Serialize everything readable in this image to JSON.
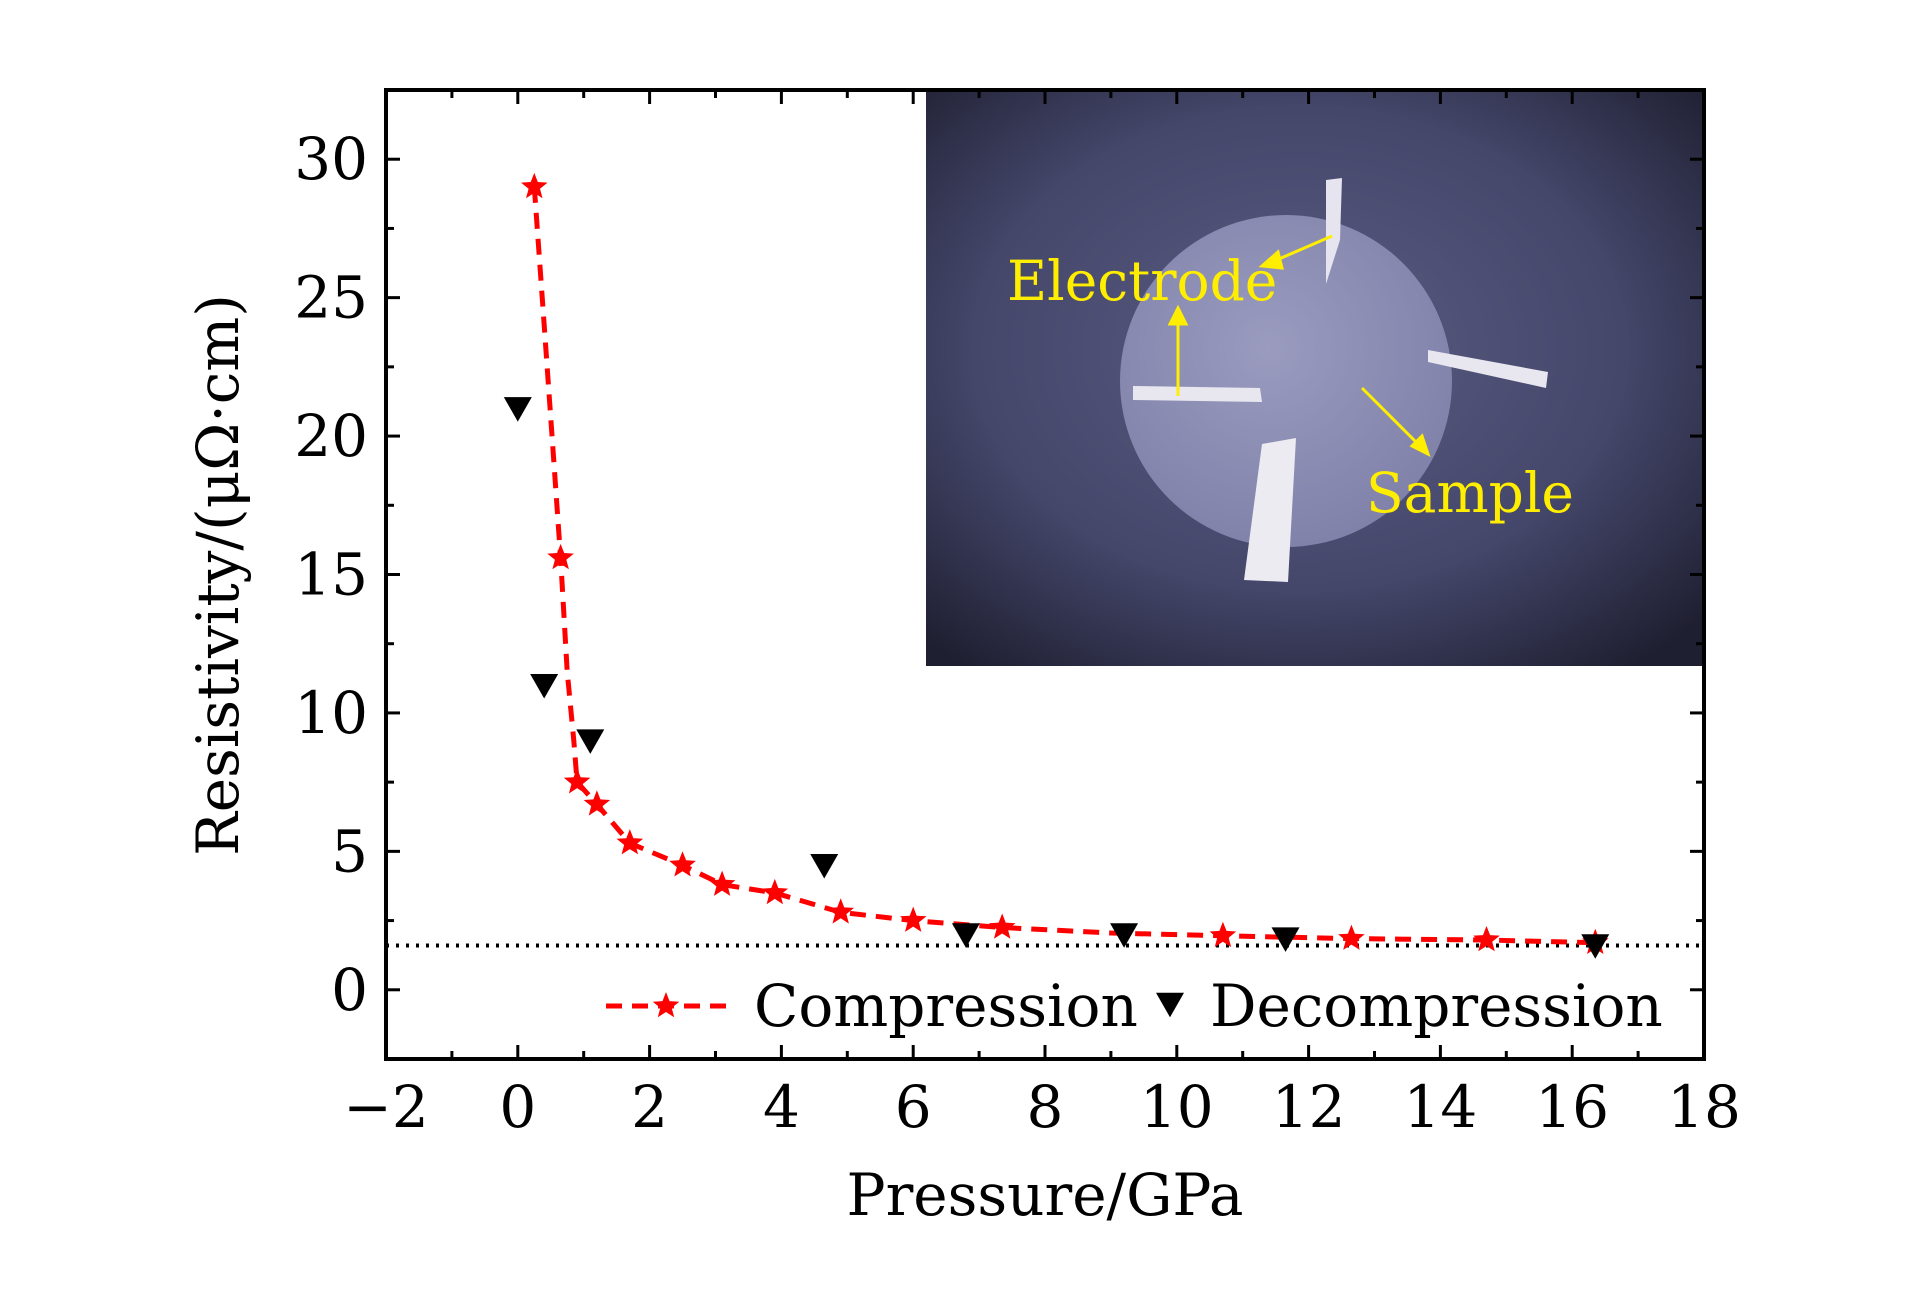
{
  "chart_data": {
    "type": "scatter",
    "title": "",
    "xlabel": "Pressure/GPa",
    "ylabel": "Resistivity/(μΩ·cm)",
    "xlim": [
      -2,
      18
    ],
    "ylim": [
      -2.5,
      32.5
    ],
    "x_ticks": [
      -2,
      0,
      2,
      4,
      6,
      8,
      10,
      12,
      14,
      16,
      18
    ],
    "x_tick_labels": [
      "−2",
      "0",
      "2",
      "4",
      "6",
      "8",
      "10",
      "12",
      "14",
      "16",
      "18"
    ],
    "y_ticks": [
      0,
      5,
      10,
      15,
      20,
      25,
      30
    ],
    "y_tick_labels": [
      "0",
      "5",
      "10",
      "15",
      "20",
      "25",
      "30"
    ],
    "grid": false,
    "legend_position": "bottom",
    "reference_line": {
      "y": 1.6,
      "style": "dotted",
      "color": "#000000"
    },
    "series": [
      {
        "name": "Compression",
        "marker": "star",
        "line": "dashed",
        "color": "#ff0000",
        "points": [
          [
            0.25,
            29.0
          ],
          [
            0.65,
            15.6
          ],
          [
            0.9,
            7.5
          ],
          [
            1.2,
            6.7
          ],
          [
            1.7,
            5.3
          ],
          [
            2.5,
            4.5
          ],
          [
            3.1,
            3.8
          ],
          [
            3.9,
            3.5
          ],
          [
            4.9,
            2.8
          ],
          [
            6.0,
            2.5
          ],
          [
            7.35,
            2.25
          ],
          [
            10.7,
            1.95
          ],
          [
            12.65,
            1.85
          ],
          [
            14.7,
            1.8
          ],
          [
            16.35,
            1.7
          ]
        ],
        "curve": [
          [
            0.25,
            29.0
          ],
          [
            0.4,
            24.0
          ],
          [
            0.55,
            19.0
          ],
          [
            0.65,
            15.6
          ],
          [
            0.75,
            11.5
          ],
          [
            0.85,
            9.0
          ],
          [
            0.9,
            7.5
          ],
          [
            1.2,
            6.7
          ],
          [
            1.7,
            5.3
          ],
          [
            2.5,
            4.5
          ],
          [
            3.1,
            3.8
          ],
          [
            3.9,
            3.5
          ],
          [
            4.9,
            2.8
          ],
          [
            6.0,
            2.5
          ],
          [
            7.35,
            2.25
          ],
          [
            9.0,
            2.05
          ],
          [
            10.7,
            1.95
          ],
          [
            12.65,
            1.85
          ],
          [
            14.7,
            1.8
          ],
          [
            16.35,
            1.7
          ]
        ]
      },
      {
        "name": "Decompression",
        "marker": "triangle-down",
        "line": "none",
        "color": "#000000",
        "points": [
          [
            0.0,
            21.0
          ],
          [
            0.4,
            11.0
          ],
          [
            1.1,
            9.0
          ],
          [
            4.65,
            4.5
          ],
          [
            6.8,
            2.0
          ],
          [
            9.2,
            2.0
          ],
          [
            11.65,
            1.85
          ],
          [
            16.35,
            1.6
          ]
        ]
      }
    ],
    "annotations": [
      "Electrode",
      "Sample"
    ],
    "inset": {
      "kind": "photo",
      "subject": "sample-with-electrodes",
      "colors": {
        "background": "#3f4160",
        "disc": "#8f90b4",
        "electrode": "#e8e6ef",
        "label": "#ffee00"
      }
    }
  }
}
